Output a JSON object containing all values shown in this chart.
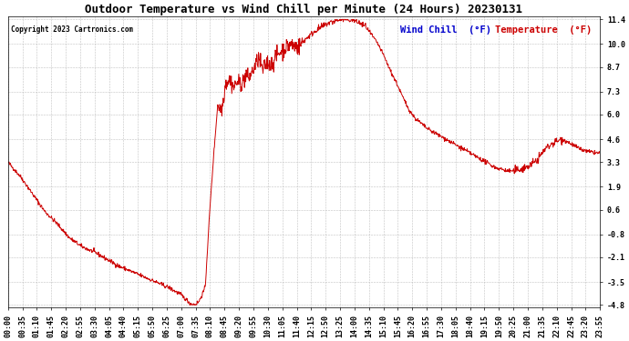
{
  "title": "Outdoor Temperature vs Wind Chill per Minute (24 Hours) 20230131",
  "copyright_text": "Copyright 2023 Cartronics.com",
  "legend_wind_chill": "Wind Chill  (°F)",
  "legend_temperature": "Temperature  (°F)",
  "line_color": "#cc0000",
  "background_color": "#ffffff",
  "grid_color": "#bbbbbb",
  "title_color": "#000000",
  "copyright_color": "#000000",
  "legend_wc_color": "#0000cc",
  "legend_temp_color": "#cc0000",
  "yticks": [
    11.4,
    10.0,
    8.7,
    7.3,
    6.0,
    4.6,
    3.3,
    1.9,
    0.6,
    -0.8,
    -2.1,
    -3.5,
    -4.8
  ],
  "xtick_labels": [
    "00:00",
    "00:35",
    "01:10",
    "01:45",
    "02:20",
    "02:55",
    "03:30",
    "04:05",
    "04:40",
    "05:15",
    "05:50",
    "06:25",
    "07:00",
    "07:35",
    "08:10",
    "08:45",
    "09:20",
    "09:55",
    "10:30",
    "11:05",
    "11:40",
    "12:15",
    "12:50",
    "13:25",
    "14:00",
    "14:35",
    "15:10",
    "15:45",
    "16:20",
    "16:55",
    "17:30",
    "18:05",
    "18:40",
    "19:15",
    "19:50",
    "20:25",
    "21:00",
    "21:35",
    "22:10",
    "22:45",
    "23:20",
    "23:55"
  ],
  "keypoints": [
    [
      0.0,
      3.3
    ],
    [
      0.5,
      2.5
    ],
    [
      1.0,
      1.5
    ],
    [
      1.5,
      0.5
    ],
    [
      2.0,
      -0.2
    ],
    [
      2.5,
      -1.0
    ],
    [
      3.0,
      -1.5
    ],
    [
      3.5,
      -1.8
    ],
    [
      4.0,
      -2.2
    ],
    [
      4.5,
      -2.6
    ],
    [
      5.0,
      -2.9
    ],
    [
      5.5,
      -3.2
    ],
    [
      6.0,
      -3.5
    ],
    [
      6.5,
      -3.8
    ],
    [
      7.0,
      -4.2
    ],
    [
      7.42,
      -4.75
    ],
    [
      7.58,
      -4.8
    ],
    [
      7.75,
      -4.6
    ],
    [
      8.0,
      -3.8
    ],
    [
      8.17,
      0.3
    ],
    [
      8.33,
      3.5
    ],
    [
      8.5,
      6.5
    ],
    [
      8.67,
      6.3
    ],
    [
      8.83,
      7.8
    ],
    [
      9.0,
      8.0
    ],
    [
      9.17,
      7.5
    ],
    [
      9.25,
      7.8
    ],
    [
      9.5,
      7.8
    ],
    [
      9.67,
      8.3
    ],
    [
      9.75,
      8.0
    ],
    [
      10.0,
      8.7
    ],
    [
      10.17,
      9.2
    ],
    [
      10.33,
      8.5
    ],
    [
      10.5,
      9.0
    ],
    [
      10.67,
      8.8
    ],
    [
      10.83,
      9.2
    ],
    [
      11.0,
      9.5
    ],
    [
      11.25,
      9.8
    ],
    [
      11.5,
      10.0
    ],
    [
      11.75,
      9.8
    ],
    [
      12.0,
      10.2
    ],
    [
      12.25,
      10.5
    ],
    [
      12.5,
      10.8
    ],
    [
      12.75,
      11.0
    ],
    [
      13.0,
      11.2
    ],
    [
      13.25,
      11.3
    ],
    [
      13.5,
      11.4
    ],
    [
      13.75,
      11.4
    ],
    [
      14.0,
      11.35
    ],
    [
      14.25,
      11.2
    ],
    [
      14.5,
      11.0
    ],
    [
      14.75,
      10.5
    ],
    [
      15.0,
      10.0
    ],
    [
      15.25,
      9.3
    ],
    [
      15.5,
      8.5
    ],
    [
      15.75,
      7.8
    ],
    [
      16.0,
      7.0
    ],
    [
      16.25,
      6.3
    ],
    [
      16.5,
      5.8
    ],
    [
      16.75,
      5.5
    ],
    [
      17.0,
      5.2
    ],
    [
      17.25,
      5.0
    ],
    [
      17.5,
      4.8
    ],
    [
      17.75,
      4.6
    ],
    [
      18.0,
      4.4
    ],
    [
      18.25,
      4.2
    ],
    [
      18.5,
      4.0
    ],
    [
      18.75,
      3.8
    ],
    [
      19.0,
      3.6
    ],
    [
      19.25,
      3.4
    ],
    [
      19.5,
      3.2
    ],
    [
      19.75,
      3.0
    ],
    [
      20.0,
      2.9
    ],
    [
      20.25,
      2.8
    ],
    [
      20.5,
      2.8
    ],
    [
      20.75,
      2.9
    ],
    [
      21.0,
      3.0
    ],
    [
      21.25,
      3.2
    ],
    [
      21.5,
      3.5
    ],
    [
      21.75,
      4.0
    ],
    [
      22.0,
      4.3
    ],
    [
      22.25,
      4.5
    ],
    [
      22.5,
      4.6
    ],
    [
      22.75,
      4.4
    ],
    [
      23.0,
      4.2
    ],
    [
      23.25,
      4.0
    ],
    [
      23.5,
      3.9
    ],
    [
      23.75,
      3.85
    ],
    [
      24.0,
      3.8
    ]
  ],
  "noise_seed": 42,
  "title_fontsize": 9,
  "tick_fontsize": 6,
  "legend_fontsize": 7.5,
  "figsize": [
    6.9,
    3.75
  ],
  "dpi": 100
}
